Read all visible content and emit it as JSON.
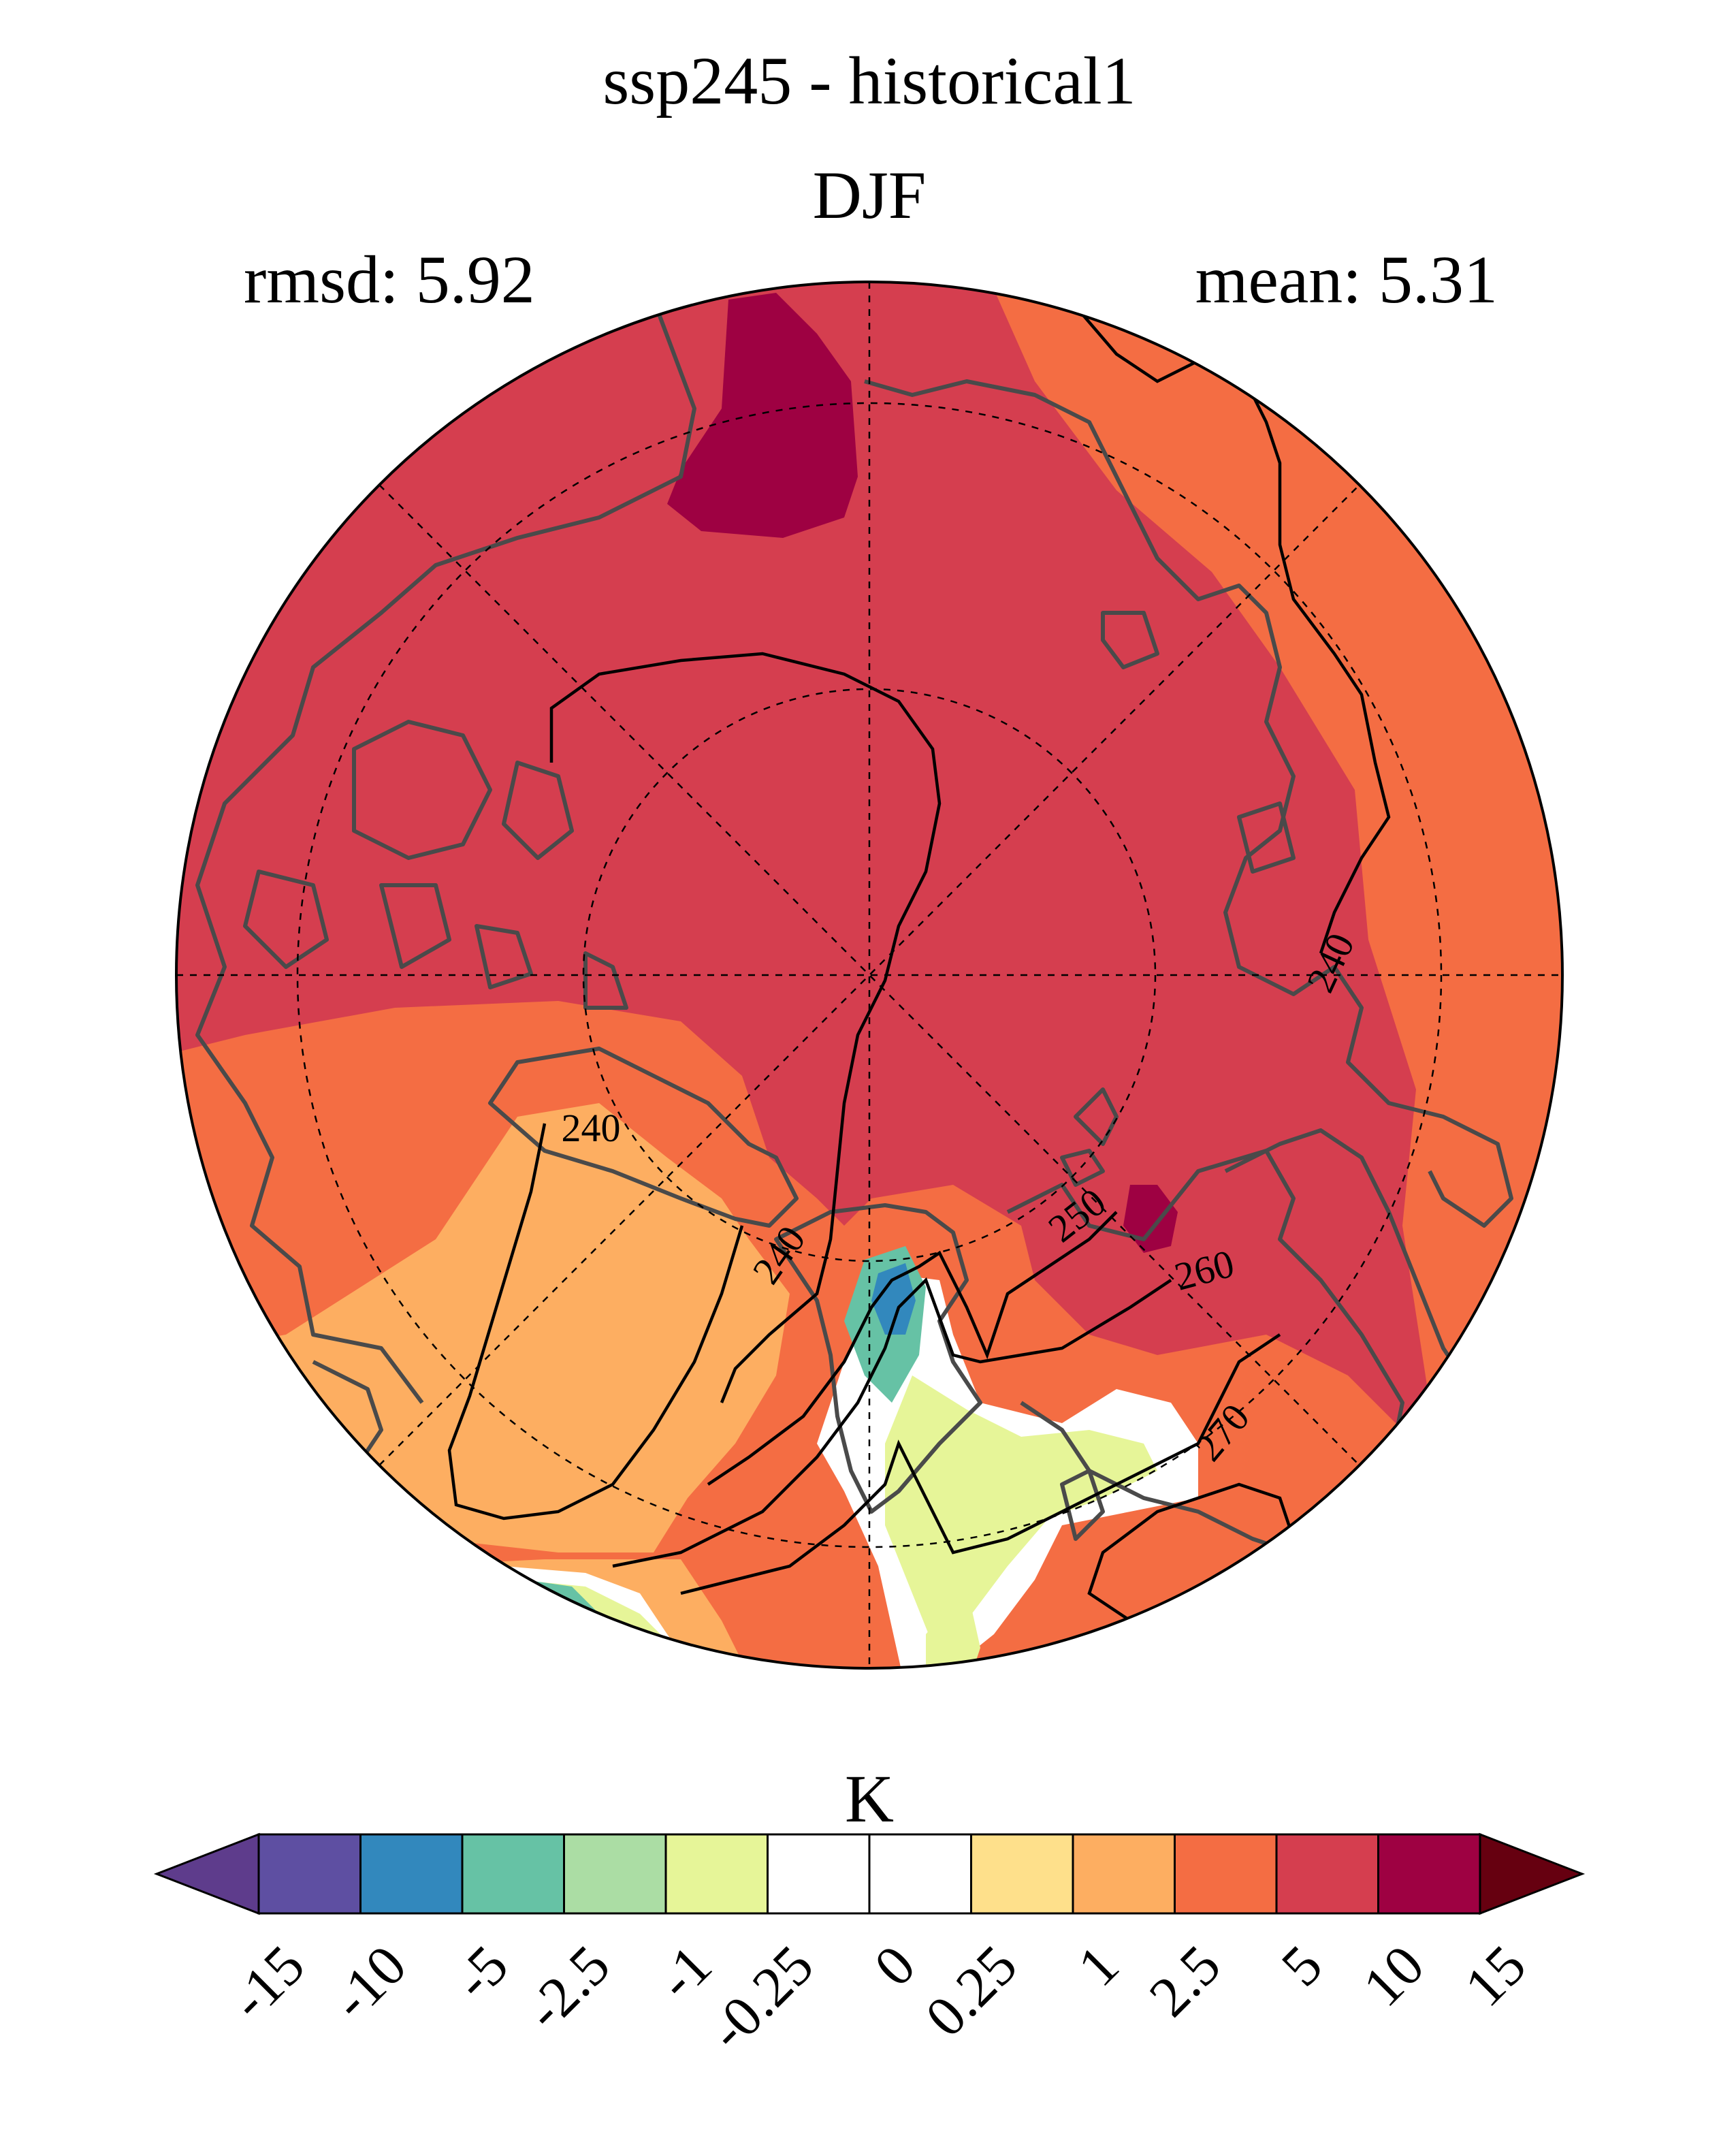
{
  "header": {
    "title": "ssp245 - historical1",
    "season": "DJF",
    "rmsd_text": "rmsd: 5.92",
    "mean_text": "mean: 5.31"
  },
  "map": {
    "projection": "north-polar-stereographic",
    "contour_labels": [
      "240",
      "240",
      "240",
      "250",
      "260",
      "270"
    ]
  },
  "colorbar": {
    "unit": "K",
    "ticks": [
      "-15",
      "-10",
      "-5",
      "-2.5",
      "-1",
      "-0.25",
      "0",
      "0.25",
      "1",
      "2.5",
      "5",
      "10",
      "15"
    ],
    "under_color": "#5e3c8c",
    "over_color": "#660010",
    "colors": [
      "#5e4fa2",
      "#3288bd",
      "#66c2a5",
      "#abdda4",
      "#e6f598",
      "#ffffff",
      "#ffffff",
      "#fee08b",
      "#fdae61",
      "#f46d43",
      "#d53e4f",
      "#9e0142"
    ]
  },
  "legend_colors": {
    "land_outline": "#4a4a4a",
    "contour": "#000000",
    "graticule": "#000000"
  }
}
